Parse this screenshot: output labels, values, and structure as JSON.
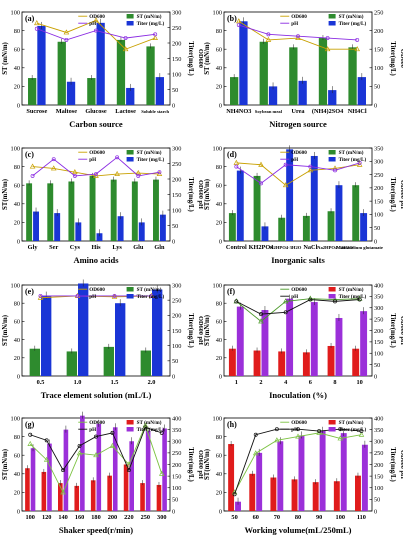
{
  "figure": {
    "title": ""
  },
  "chart_data": [
    {
      "id": "a",
      "panel_label": "(a)",
      "type": "bar",
      "xlabel": "Carbon source",
      "ylabel_left": "ST (mN/m)",
      "ylabel_right": "Titer(mg/L)",
      "ylabel_right_outer": "OD600",
      "ylim_left": [
        0,
        100
      ],
      "ylim_right": [
        0,
        300
      ],
      "right_ticks": [
        0,
        50,
        100,
        150,
        200,
        250,
        300
      ],
      "left_ticks": [
        0,
        20,
        40,
        60,
        80,
        100
      ],
      "categories": [
        "Sucrose",
        "Maltose",
        "Glucose",
        "Lactose",
        "Soluble starch"
      ],
      "legend": [
        "OD600",
        "ST (mN/m)",
        "pH",
        "Titer (mg/L)"
      ],
      "bar_series": [
        {
          "name": "ST (mN/m)",
          "color": "#2e8b2e",
          "values": [
            29,
            68,
            29,
            70,
            63
          ]
        },
        {
          "name": "Titer (mg/L)",
          "color": "#1a35d6",
          "values": [
            255,
            75,
            265,
            55,
            90
          ]
        }
      ],
      "line_series": [
        {
          "name": "OD600",
          "color": "#c8a000",
          "values": [
            88,
            78,
            91,
            60,
            72
          ]
        },
        {
          "name": "pH",
          "color": "#8a2be2",
          "values": [
            82,
            70,
            80,
            72,
            76
          ]
        }
      ]
    },
    {
      "id": "b",
      "panel_label": "(b)",
      "type": "bar",
      "xlabel": "Nitrogen source",
      "ylabel_left": "ST (mN/m)",
      "ylabel_right": "Titer(mg/L)",
      "ylabel_right_outer": "OD600",
      "ylim_left": [
        0,
        100
      ],
      "ylim_right": [
        0,
        250
      ],
      "right_ticks": [
        0,
        50,
        100,
        150,
        200,
        250
      ],
      "left_ticks": [
        0,
        20,
        40,
        60,
        80,
        100
      ],
      "categories": [
        "NH4NO3",
        "Soybean meal",
        "Urea",
        "(NH4)2SO4",
        "NH4Cl"
      ],
      "legend": [
        "OD600",
        "ST (mN/m)",
        "pH",
        "Titer (mg/L)"
      ],
      "bar_series": [
        {
          "name": "ST (mN/m)",
          "color": "#2e8b2e",
          "values": [
            30,
            68,
            62,
            72,
            62
          ]
        },
        {
          "name": "Titer (mg/L)",
          "color": "#1a35d6",
          "values": [
            225,
            50,
            65,
            40,
            75
          ]
        }
      ],
      "line_series": [
        {
          "name": "OD600",
          "color": "#c8a000",
          "values": [
            90,
            70,
            72,
            60,
            60
          ]
        },
        {
          "name": "pH",
          "color": "#8a2be2",
          "values": [
            86,
            76,
            74,
            72,
            70
          ]
        }
      ]
    },
    {
      "id": "c",
      "panel_label": "(c)",
      "type": "bar",
      "xlabel": "Amino acids",
      "ylabel_left": "ST(mN/m)",
      "ylabel_right": "Titer(mg/L)",
      "ylabel_right_outer": "OD600 pH",
      "ylim_left": [
        0,
        100
      ],
      "ylim_right": [
        0,
        300
      ],
      "right_ticks": [
        0,
        50,
        100,
        150,
        200,
        250,
        300
      ],
      "left_ticks": [
        0,
        20,
        40,
        60,
        80,
        100
      ],
      "categories": [
        "Gly",
        "Ser",
        "Cys",
        "His",
        "Lys",
        "Glu",
        "Gln"
      ],
      "legend": [
        "OD600",
        "ST (mN/m)",
        "pH",
        "Titer (mg/L)"
      ],
      "bar_series": [
        {
          "name": "ST (mN/m)",
          "color": "#2e8b2e",
          "values": [
            62,
            62,
            64,
            70,
            66,
            64,
            66
          ]
        },
        {
          "name": "Titer (mg/L)",
          "color": "#1a35d6",
          "values": [
            95,
            90,
            60,
            25,
            80,
            60,
            85
          ]
        }
      ],
      "line_series": [
        {
          "name": "OD600",
          "color": "#c8a000",
          "values": [
            80,
            78,
            74,
            70,
            72,
            73,
            72
          ]
        },
        {
          "name": "pH",
          "color": "#8a2be2",
          "values": [
            70,
            88,
            70,
            72,
            90,
            70,
            74
          ]
        }
      ]
    },
    {
      "id": "d",
      "panel_label": "(d)",
      "type": "bar",
      "xlabel": "Inorganic salts",
      "ylabel_left": "ST(mN/m)",
      "ylabel_right": "Titer(mg/L)",
      "ylabel_right_outer": "OD600 pH",
      "ylim_left": [
        0,
        100
      ],
      "ylim_right": [
        0,
        350
      ],
      "right_ticks": [
        0,
        50,
        100,
        150,
        200,
        250,
        300,
        350
      ],
      "left_ticks": [
        0,
        20,
        40,
        60,
        80,
        100
      ],
      "categories": [
        "Control",
        "KH2PO4",
        "K2HPO4·3H2O",
        "NaCl",
        "Na2HPO4·12H2O",
        "Monosodium glutamate"
      ],
      "legend": [
        "OD600",
        "ST (mN/m)",
        "pH",
        "Titer (mg/L)"
      ],
      "bar_series": [
        {
          "name": "ST (mN/m)",
          "color": "#2e8b2e",
          "values": [
            30,
            70,
            25,
            27,
            32,
            60
          ]
        },
        {
          "name": "Titer (mg/L)",
          "color": "#1a35d6",
          "values": [
            265,
            55,
            345,
            320,
            210,
            105
          ]
        }
      ],
      "line_series": [
        {
          "name": "OD600",
          "color": "#c8a000",
          "values": [
            84,
            82,
            60,
            76,
            78,
            82
          ]
        },
        {
          "name": "pH",
          "color": "#8a2be2",
          "values": [
            80,
            62,
            82,
            80,
            76,
            84
          ]
        }
      ]
    },
    {
      "id": "e",
      "panel_label": "(e)",
      "type": "bar",
      "xlabel": "Trace element solution (mL/L)",
      "ylabel_left": "ST(mN/m)",
      "ylabel_right": "Titer(mg/L)",
      "ylabel_right_outer": "OD600 pH",
      "ylim_left": [
        0,
        100
      ],
      "ylim_right": [
        0,
        300
      ],
      "right_ticks": [
        0,
        50,
        100,
        150,
        200,
        250,
        300
      ],
      "left_ticks": [
        0,
        20,
        40,
        60,
        80,
        100
      ],
      "categories": [
        "0.5",
        "1.0",
        "1.5",
        "2.0"
      ],
      "legend": [
        "OD600",
        "ST (mN/m)",
        "pH",
        "Titer (mg/L)"
      ],
      "bar_series": [
        {
          "name": "ST (mN/m)",
          "color": "#2e8b2e",
          "values": [
            30,
            27,
            32,
            28
          ]
        },
        {
          "name": "Titer (mg/L)",
          "color": "#1a35d6",
          "values": [
            265,
            305,
            240,
            285
          ]
        }
      ],
      "line_series": [
        {
          "name": "OD600",
          "color": "#c8a000",
          "values": [
            86,
            88,
            87,
            88
          ]
        },
        {
          "name": "pH",
          "color": "#8a2be2",
          "values": [
            88,
            88,
            88,
            88
          ]
        }
      ]
    },
    {
      "id": "f",
      "panel_label": "(f)",
      "type": "bar",
      "xlabel": "Inoculation (%)",
      "ylabel_left": "ST(mN/m)",
      "ylabel_right": "Titer(mg/L)",
      "ylabel_right_outer": "OD600 pH",
      "ylim_left": [
        0,
        100
      ],
      "ylim_right": [
        0,
        400
      ],
      "right_ticks": [
        0,
        50,
        100,
        150,
        200,
        250,
        300,
        350,
        400
      ],
      "left_ticks": [
        0,
        20,
        40,
        60,
        80,
        100
      ],
      "categories": [
        "1",
        "2",
        "4",
        "6",
        "8",
        "10"
      ],
      "legend": [
        "OD600",
        "ST (mN/m)",
        "pH",
        "Titer (mg/L)"
      ],
      "bar_series": [
        {
          "name": "ST (mN/m)",
          "color": "#e01c1c",
          "values": [
            30,
            28,
            27,
            26,
            33,
            30
          ]
        },
        {
          "name": "Titer (mg/L)",
          "color": "#9b30d9",
          "values": [
            305,
            290,
            340,
            325,
            255,
            285
          ]
        }
      ],
      "line_series": [
        {
          "name": "OD600",
          "color": "#4c9a2a",
          "values": [
            82,
            60,
            82,
            85,
            84,
            85
          ]
        },
        {
          "name": "pH",
          "color": "#111111",
          "values": [
            82,
            68,
            70,
            84,
            82,
            84
          ]
        }
      ]
    },
    {
      "id": "g",
      "panel_label": "(g)",
      "type": "bar",
      "xlabel": "Shaker speed(r/min)",
      "ylabel_left": "ST(mN/m)",
      "ylabel_right": "Titer(mg/L)",
      "ylabel_right_outer": "OD600 pH",
      "ylim_left": [
        0,
        100
      ],
      "ylim_right": [
        0,
        400
      ],
      "right_ticks": [
        0,
        50,
        100,
        150,
        200,
        250,
        300,
        350,
        400
      ],
      "left_ticks": [
        0,
        20,
        40,
        60,
        80,
        100
      ],
      "categories": [
        "100",
        "120",
        "140",
        "160",
        "180",
        "200",
        "220",
        "250",
        "300"
      ],
      "legend": [
        "OD600",
        "ST (mN/m)",
        "pH",
        "Titer (mg/L)"
      ],
      "bar_series": [
        {
          "name": "ST (mN/m)",
          "color": "#e01c1c",
          "values": [
            46,
            42,
            30,
            27,
            33,
            38,
            50,
            30,
            28
          ]
        },
        {
          "name": "Titer (mg/L)",
          "color": "#9b30d9",
          "values": [
            270,
            290,
            350,
            410,
            375,
            360,
            300,
            345,
            355
          ]
        }
      ],
      "line_series": [
        {
          "name": "OD600",
          "color": "#7cc242",
          "values": [
            72,
            55,
            20,
            62,
            60,
            70,
            50,
            92,
            40
          ]
        },
        {
          "name": "pH",
          "color": "#111111",
          "values": [
            82,
            76,
            44,
            70,
            80,
            84,
            44,
            90,
            84
          ]
        }
      ]
    },
    {
      "id": "h",
      "panel_label": "(h)",
      "type": "bar",
      "xlabel": "Working volume(mL/250mL)",
      "ylabel_left": "ST(mN/m)",
      "ylabel_right": "Titer(mg/L)",
      "ylabel_right_outer": "OD600 pH",
      "ylim_left": [
        0,
        100
      ],
      "ylim_right": [
        0,
        400
      ],
      "right_ticks": [
        0,
        50,
        100,
        150,
        200,
        250,
        300,
        350,
        400
      ],
      "left_ticks": [
        0,
        20,
        40,
        60,
        80,
        100
      ],
      "categories": [
        "50",
        "60",
        "70",
        "80",
        "90",
        "100",
        "110"
      ],
      "legend": [
        "OD600",
        "ST (mN/m)",
        "pH",
        "Titer (mg/L)"
      ],
      "bar_series": [
        {
          "name": "ST (mN/m)",
          "color": "#e01c1c",
          "values": [
            72,
            40,
            36,
            34,
            31,
            32,
            38
          ]
        },
        {
          "name": "Titer (mg/L)",
          "color": "#9b30d9",
          "values": [
            40,
            250,
            300,
            325,
            345,
            335,
            285
          ]
        }
      ],
      "line_series": [
        {
          "name": "OD600",
          "color": "#7cc242",
          "values": [
            20,
            62,
            76,
            80,
            84,
            78,
            82
          ]
        },
        {
          "name": "pH",
          "color": "#111111",
          "values": [
            18,
            82,
            88,
            88,
            86,
            88,
            86
          ]
        }
      ]
    }
  ]
}
